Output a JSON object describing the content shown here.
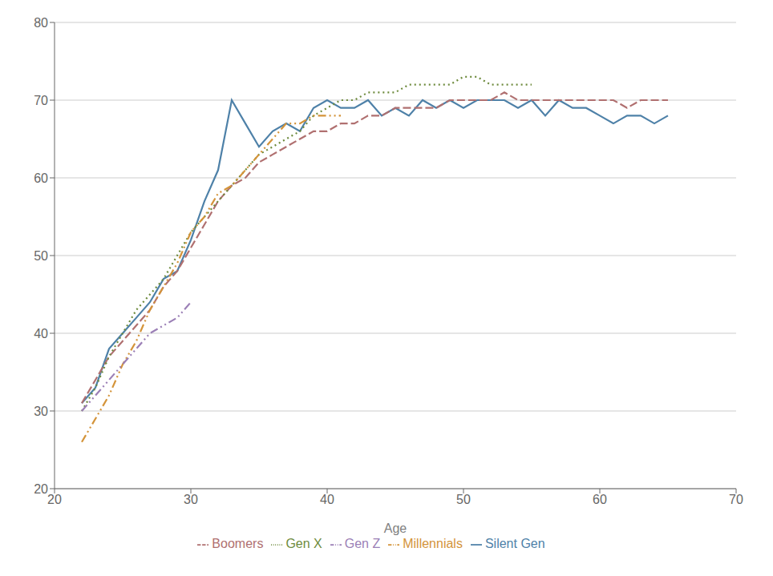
{
  "chart_data": {
    "type": "line",
    "xlabel": "Age",
    "xlim": [
      20,
      70
    ],
    "ylim": [
      20,
      80
    ],
    "xticks": [
      20,
      30,
      40,
      50,
      60,
      70
    ],
    "yticks": [
      20,
      30,
      40,
      50,
      60,
      70,
      80
    ],
    "grid": "y",
    "legend": "bottom",
    "series": [
      {
        "name": "Silent Gen",
        "color": "#4e81a8",
        "line_style": "solid",
        "x": [
          22,
          23,
          24,
          25,
          26,
          27,
          28,
          29,
          30,
          31,
          32,
          33,
          34,
          35,
          36,
          37,
          38,
          39,
          40,
          41,
          42,
          43,
          44,
          45,
          46,
          47,
          48,
          49,
          50,
          51,
          52,
          53,
          54,
          55,
          56,
          57,
          58,
          59,
          60,
          61,
          62,
          63,
          64,
          65
        ],
        "values": [
          31,
          33,
          38,
          40,
          42,
          44,
          47,
          48,
          52,
          57,
          61,
          70,
          67,
          64,
          66,
          67,
          66,
          69,
          70,
          69,
          69,
          70,
          68,
          69,
          68,
          70,
          69,
          70,
          69,
          70,
          70,
          70,
          69,
          70,
          68,
          70,
          69,
          69,
          68,
          67,
          68,
          68,
          67,
          68
        ]
      },
      {
        "name": "Boomers",
        "color": "#b07070",
        "line_style": "dashed",
        "x": [
          22,
          23,
          24,
          25,
          26,
          27,
          28,
          29,
          30,
          31,
          32,
          33,
          34,
          35,
          36,
          37,
          38,
          39,
          40,
          41,
          42,
          43,
          44,
          45,
          46,
          47,
          48,
          49,
          50,
          51,
          52,
          53,
          54,
          55,
          56,
          57,
          58,
          59,
          60,
          61,
          62,
          63,
          64,
          65
        ],
        "values": [
          31,
          34,
          37,
          39,
          41,
          43,
          46,
          48,
          51,
          54,
          57,
          59,
          60,
          62,
          63,
          64,
          65,
          66,
          66,
          67,
          67,
          68,
          68,
          69,
          69,
          69,
          69,
          70,
          70,
          70,
          70,
          71,
          70,
          70,
          70,
          70,
          70,
          70,
          70,
          70,
          69,
          70,
          70,
          70
        ]
      },
      {
        "name": "Gen X",
        "color": "#6e8b3d",
        "line_style": "dotted",
        "x": [
          22,
          23,
          24,
          25,
          26,
          27,
          28,
          29,
          30,
          31,
          32,
          33,
          34,
          35,
          36,
          37,
          38,
          39,
          40,
          41,
          42,
          43,
          44,
          45,
          46,
          47,
          48,
          49,
          50,
          51,
          52,
          53,
          54,
          55
        ],
        "values": [
          30,
          33,
          37,
          40,
          43,
          45,
          47,
          50,
          53,
          55,
          57,
          59,
          61,
          63,
          64,
          65,
          66,
          68,
          69,
          70,
          70,
          71,
          71,
          71,
          72,
          72,
          72,
          72,
          73,
          73,
          72,
          72,
          72,
          72
        ]
      },
      {
        "name": "Millennials",
        "color": "#d4943a",
        "line_style": "dashdotdot",
        "x": [
          22,
          23,
          24,
          25,
          26,
          27,
          28,
          29,
          30,
          31,
          32,
          33,
          34,
          35,
          36,
          37,
          38,
          39,
          40,
          41
        ],
        "values": [
          26,
          29,
          32,
          36,
          39,
          43,
          46,
          49,
          53,
          55,
          58,
          59,
          61,
          63,
          65,
          67,
          67,
          68,
          68,
          68
        ]
      },
      {
        "name": "Gen Z",
        "color": "#9b7fb6",
        "line_style": "dashdotdot",
        "x": [
          22,
          23,
          24,
          25,
          26,
          27,
          28,
          29,
          30
        ],
        "values": [
          30,
          32,
          34,
          36,
          38,
          40,
          41,
          42,
          44
        ]
      }
    ]
  }
}
